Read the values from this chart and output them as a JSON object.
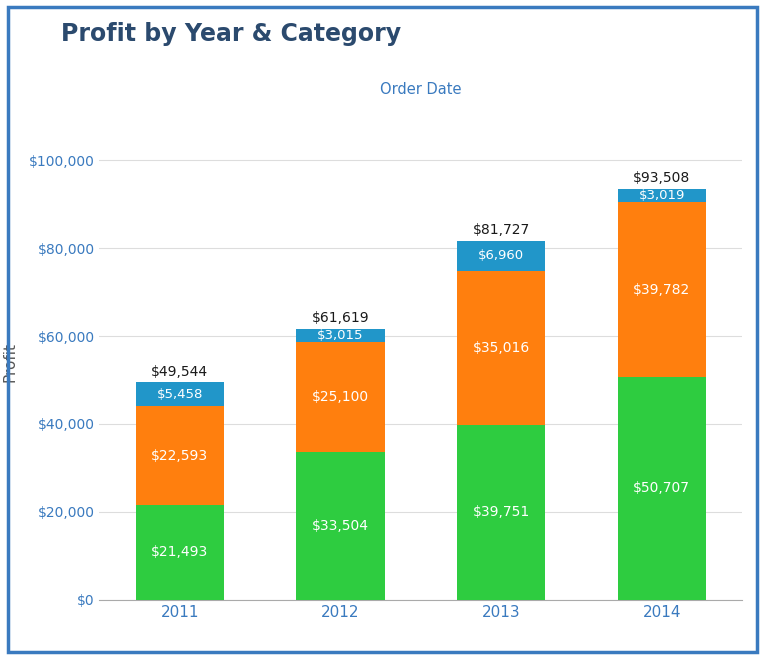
{
  "title": "Profit by Year & Category",
  "xlabel": "Order Date",
  "ylabel": "Profit",
  "years": [
    "2011",
    "2012",
    "2013",
    "2014"
  ],
  "furniture": [
    21493,
    33504,
    39751,
    50707
  ],
  "office": [
    22593,
    25100,
    35016,
    39782
  ],
  "technology": [
    5458,
    3015,
    6960,
    3019
  ],
  "totals": [
    49544,
    61619,
    81727,
    93508
  ],
  "color_furniture": "#2ecc40",
  "color_office": "#ff7f0e",
  "color_technology": "#2196c9",
  "color_total_label": "#1a1a1a",
  "bar_width": 0.55,
  "ylim": [
    0,
    108000
  ],
  "yticks": [
    0,
    20000,
    40000,
    60000,
    80000,
    100000
  ],
  "background_color": "#ffffff",
  "border_color": "#3a7abf",
  "title_color": "#2b4a6e",
  "xlabel_color": "#3a7abf",
  "axis_label_color": "#555555",
  "tick_label_color": "#3a7abf"
}
